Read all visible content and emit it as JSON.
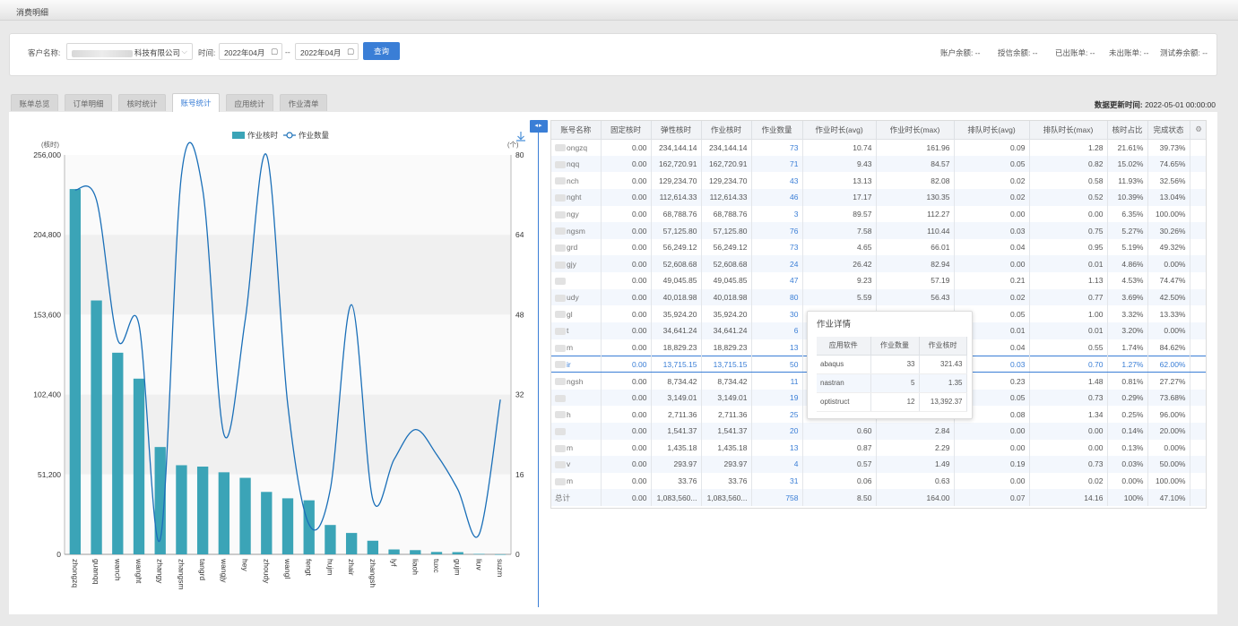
{
  "window_title": "消费明细",
  "filter": {
    "customer_label": "客户名称:",
    "customer_value": "科技有限公司",
    "time_label": "时间:",
    "start_date": "2022年04月",
    "end_date": "2022年04月",
    "range_sep": "--",
    "query_label": "查询",
    "stats": [
      {
        "label": "账户余额:",
        "value": "--"
      },
      {
        "label": "授信余额:",
        "value": "--"
      },
      {
        "label": "已出账单:",
        "value": "--"
      },
      {
        "label": "未出账单:",
        "value": "--"
      },
      {
        "label": "测试券余额:",
        "value": "--"
      }
    ]
  },
  "tabs": [
    "账单总览",
    "订单明细",
    "核时统计",
    "账号统计",
    "应用统计",
    "作业清单"
  ],
  "active_tab": 3,
  "update_time_label": "数据更新时间:",
  "update_time": "2022-05-01 00:00:00",
  "chart_data": {
    "type": "bar+line",
    "legend": [
      "作业核时",
      "作业数量"
    ],
    "y_left_unit": "(核时)",
    "y_right_unit": "(个)",
    "y_left_ticks": [
      "256,000",
      "204,800",
      "153,600",
      "102,400",
      "51,200",
      "0"
    ],
    "y_right_ticks": [
      "80",
      "64",
      "48",
      "32",
      "16",
      "0"
    ],
    "ylim_left": [
      0,
      256000
    ],
    "ylim_right": [
      0,
      80
    ],
    "categories": [
      "zhongzq",
      "guanqq",
      "wanch",
      "wanght",
      "zhangy",
      "zhangsm",
      "tangrd",
      "wangjy",
      "hey",
      "zhoudy",
      "wangl",
      "fengt",
      "hujm",
      "zhair",
      "zhangsh",
      "lyf",
      "liaoh",
      "tuxc",
      "gujm",
      "liuv",
      "suzm"
    ],
    "series": [
      {
        "name": "作业核时",
        "type": "bar",
        "color": "#3ba4b7",
        "values": [
          234144.14,
          162720.91,
          129234.7,
          112614.33,
          68788.76,
          57125.8,
          56249.12,
          52608.68,
          49045.85,
          40018.98,
          35924.2,
          34641.24,
          18829.23,
          13715.15,
          8734.42,
          3149.01,
          2711.36,
          1541.37,
          1435.18,
          293.97,
          33.76
        ]
      },
      {
        "name": "作业数量",
        "type": "line",
        "color": "#1a6fb8",
        "values": [
          73,
          71,
          43,
          46,
          3,
          76,
          73,
          24,
          47,
          80,
          30,
          6,
          13,
          50,
          11,
          19,
          25,
          20,
          13,
          4,
          31
        ]
      }
    ]
  },
  "grid": {
    "headers": [
      "账号名称",
      "固定核时",
      "弹性核时",
      "作业核时",
      "作业数量",
      "作业时长(avg)",
      "作业时长(max)",
      "排队时长(avg)",
      "排队时长(max)",
      "核时占比",
      "完成状态"
    ],
    "rows": [
      [
        "ongzq",
        "0.00",
        "234,144.14",
        "234,144.14",
        "73",
        "10.74",
        "161.96",
        "0.09",
        "1.28",
        "21.61%",
        "39.73%"
      ],
      [
        "nqq",
        "0.00",
        "162,720.91",
        "162,720.91",
        "71",
        "9.43",
        "84.57",
        "0.05",
        "0.82",
        "15.02%",
        "74.65%"
      ],
      [
        "nch",
        "0.00",
        "129,234.70",
        "129,234.70",
        "43",
        "13.13",
        "82.08",
        "0.02",
        "0.58",
        "11.93%",
        "32.56%"
      ],
      [
        "nght",
        "0.00",
        "112,614.33",
        "112,614.33",
        "46",
        "17.17",
        "130.35",
        "0.02",
        "0.52",
        "10.39%",
        "13.04%"
      ],
      [
        "ngy",
        "0.00",
        "68,788.76",
        "68,788.76",
        "3",
        "89.57",
        "112.27",
        "0.00",
        "0.00",
        "6.35%",
        "100.00%"
      ],
      [
        "ngsm",
        "0.00",
        "57,125.80",
        "57,125.80",
        "76",
        "7.58",
        "110.44",
        "0.03",
        "0.75",
        "5.27%",
        "30.26%"
      ],
      [
        "grd",
        "0.00",
        "56,249.12",
        "56,249.12",
        "73",
        "4.65",
        "66.01",
        "0.04",
        "0.95",
        "5.19%",
        "49.32%"
      ],
      [
        "gjy",
        "0.00",
        "52,608.68",
        "52,608.68",
        "24",
        "26.42",
        "82.94",
        "0.00",
        "0.01",
        "4.86%",
        "0.00%"
      ],
      [
        "",
        "0.00",
        "49,045.85",
        "49,045.85",
        "47",
        "9.23",
        "57.19",
        "0.21",
        "1.13",
        "4.53%",
        "74.47%"
      ],
      [
        "udy",
        "0.00",
        "40,018.98",
        "40,018.98",
        "80",
        "5.59",
        "56.43",
        "0.02",
        "0.77",
        "3.69%",
        "42.50%"
      ],
      [
        "gl",
        "0.00",
        "35,924.20",
        "35,924.20",
        "30",
        "",
        "",
        "0.05",
        "1.00",
        "3.32%",
        "13.33%"
      ],
      [
        "t",
        "0.00",
        "34,641.24",
        "34,641.24",
        "6",
        "",
        "",
        "0.01",
        "0.01",
        "3.20%",
        "0.00%"
      ],
      [
        "m",
        "0.00",
        "18,829.23",
        "18,829.23",
        "13",
        "",
        "",
        "0.04",
        "0.55",
        "1.74%",
        "84.62%"
      ],
      [
        "ir",
        "0.00",
        "13,715.15",
        "13,715.15",
        "50",
        "",
        "",
        "0.03",
        "0.70",
        "1.27%",
        "62.00%"
      ],
      [
        "ngsh",
        "0.00",
        "8,734.42",
        "8,734.42",
        "11",
        "",
        "",
        "0.23",
        "1.48",
        "0.81%",
        "27.27%"
      ],
      [
        "",
        "0.00",
        "3,149.01",
        "3,149.01",
        "19",
        "",
        "",
        "0.05",
        "0.73",
        "0.29%",
        "73.68%"
      ],
      [
        "h",
        "0.00",
        "2,711.36",
        "2,711.36",
        "25",
        "",
        "",
        "0.08",
        "1.34",
        "0.25%",
        "96.00%"
      ],
      [
        "",
        "0.00",
        "1,541.37",
        "1,541.37",
        "20",
        "0.60",
        "2.84",
        "0.00",
        "0.00",
        "0.14%",
        "20.00%"
      ],
      [
        "m",
        "0.00",
        "1,435.18",
        "1,435.18",
        "13",
        "0.87",
        "2.29",
        "0.00",
        "0.00",
        "0.13%",
        "0.00%"
      ],
      [
        "v",
        "0.00",
        "293.97",
        "293.97",
        "4",
        "0.57",
        "1.49",
        "0.19",
        "0.73",
        "0.03%",
        "50.00%"
      ],
      [
        "m",
        "0.00",
        "33.76",
        "33.76",
        "31",
        "0.06",
        "0.63",
        "0.00",
        "0.02",
        "0.00%",
        "100.00%"
      ]
    ],
    "total": [
      "总计",
      "0.00",
      "1,083,560...",
      "1,083,560...",
      "758",
      "8.50",
      "164.00",
      "0.07",
      "14.16",
      "100%",
      "47.10%"
    ],
    "selected_row": 13
  },
  "tooltip": {
    "title": "作业详情",
    "headers": [
      "应用软件",
      "作业数量",
      "作业核时"
    ],
    "rows": [
      [
        "abaqus",
        "33",
        "321.43"
      ],
      [
        "nastran",
        "5",
        "1.35"
      ],
      [
        "optistruct",
        "12",
        "13,392.37"
      ]
    ]
  }
}
